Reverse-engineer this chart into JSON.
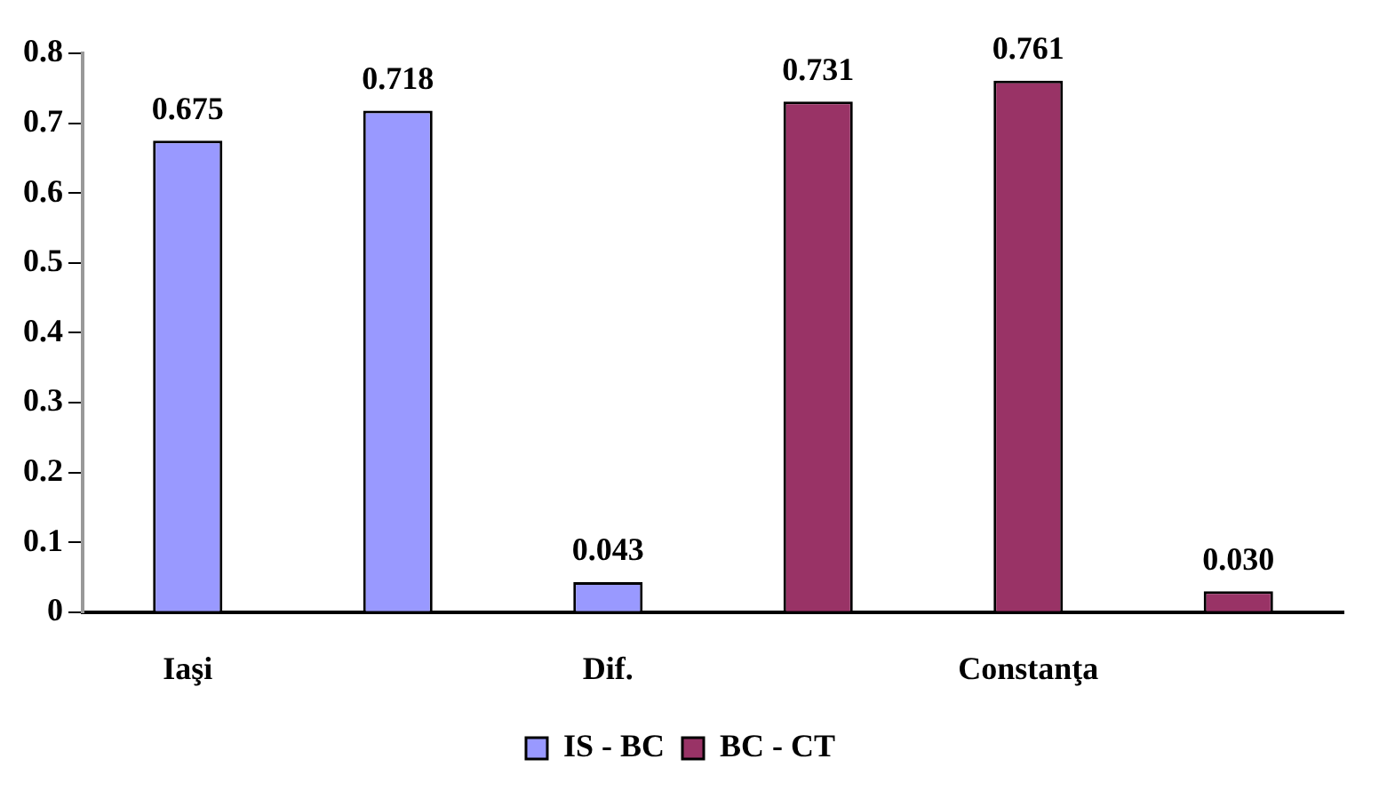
{
  "chart_data": {
    "type": "bar",
    "categories": [
      "Iaşi",
      null,
      "Dif.",
      null,
      "Constanţa",
      null
    ],
    "series": [
      {
        "name": "IS - BC",
        "color": "#9999ff",
        "values": [
          0.675,
          0.718,
          0.043,
          null,
          null,
          null
        ],
        "value_labels": [
          "0.675",
          "0.718",
          "0.043",
          null,
          null,
          null
        ]
      },
      {
        "name": "BC - CT",
        "color": "#993366",
        "values": [
          null,
          null,
          null,
          0.731,
          0.761,
          0.03
        ],
        "value_labels": [
          null,
          null,
          null,
          "0.731",
          "0.761",
          "0.030"
        ]
      }
    ],
    "ylim": [
      0,
      0.8
    ],
    "yticks": [
      0,
      0.1,
      0.2,
      0.3,
      0.4,
      0.5,
      0.6,
      0.7,
      0.8
    ],
    "grid": false,
    "legend": "bottom"
  }
}
